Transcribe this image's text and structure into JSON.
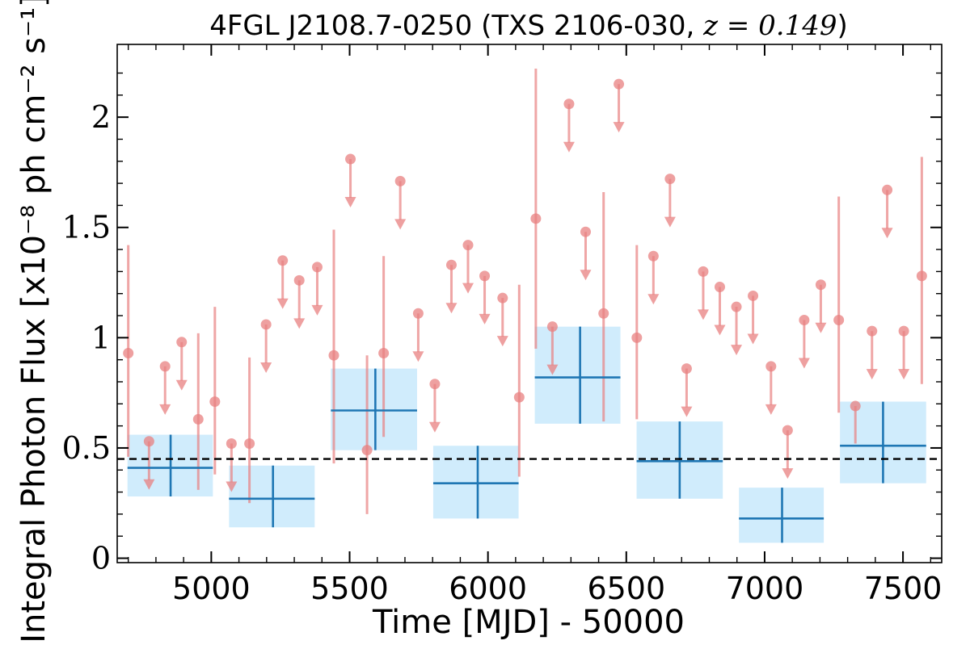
{
  "chart_data": {
    "type": "scatter",
    "title": "4FGL J2108.7-0250 (TXS 2106-030, z = 0.149)",
    "title_parts": {
      "prefix": "4FGL J2108.7-0250 (TXS 2106-030, ",
      "math": "z = 0.149",
      "suffix": ")"
    },
    "xlabel": "Time [MJD] - 50000",
    "ylabel": "Integral Photon Flux [x10⁻⁸ ph cm⁻² s⁻¹]",
    "xlim": [
      4660,
      7640
    ],
    "ylim": [
      -0.02,
      2.33
    ],
    "x_ticks": [
      5000,
      5500,
      6000,
      6500,
      7000,
      7500
    ],
    "x_tick_labels": [
      "5000",
      "5500",
      "6000",
      "6500",
      "7000",
      "7500"
    ],
    "y_ticks": [
      0,
      0.5,
      1,
      1.5,
      2
    ],
    "y_tick_labels": [
      "0",
      "0.5",
      "1",
      "1.5",
      "2"
    ],
    "grid": false,
    "colors": {
      "short_bin": "#e88080",
      "long_bin_line": "#1f77b4",
      "long_bin_box": "#c8e9fb",
      "average_line": "#000000"
    },
    "average_flux": 0.45,
    "short_bin_detections": [
      {
        "x": 4700,
        "y": 0.93,
        "ylo": 0.46,
        "yhi": 1.42
      },
      {
        "x": 4953,
        "y": 0.63,
        "ylo": 0.31,
        "yhi": 1.02
      },
      {
        "x": 5013,
        "y": 0.71,
        "ylo": 0.38,
        "yhi": 1.14
      },
      {
        "x": 5138,
        "y": 0.52,
        "ylo": 0.25,
        "yhi": 0.91
      },
      {
        "x": 5443,
        "y": 0.92,
        "ylo": 0.43,
        "yhi": 1.49
      },
      {
        "x": 5563,
        "y": 0.49,
        "ylo": 0.2,
        "yhi": 0.92
      },
      {
        "x": 5623,
        "y": 0.93,
        "ylo": 0.55,
        "yhi": 1.37
      },
      {
        "x": 6113,
        "y": 0.73,
        "ylo": 0.37,
        "yhi": 1.24
      },
      {
        "x": 6173,
        "y": 1.54,
        "ylo": 0.95,
        "yhi": 2.22
      },
      {
        "x": 6418,
        "y": 1.11,
        "ylo": 0.62,
        "yhi": 1.66
      },
      {
        "x": 6538,
        "y": 1.0,
        "ylo": 0.63,
        "yhi": 1.42
      },
      {
        "x": 7268,
        "y": 1.08,
        "ylo": 0.66,
        "yhi": 1.64
      },
      {
        "x": 7328,
        "y": 0.69,
        "ylo": 0.52,
        "yhi": 0.69
      },
      {
        "x": 7568,
        "y": 1.28,
        "ylo": 0.79,
        "yhi": 1.82
      }
    ],
    "short_bin_upper_limits": [
      {
        "x": 4775,
        "y": 0.53
      },
      {
        "x": 4833,
        "y": 0.87
      },
      {
        "x": 4893,
        "y": 0.98
      },
      {
        "x": 5073,
        "y": 0.52
      },
      {
        "x": 5198,
        "y": 1.06
      },
      {
        "x": 5258,
        "y": 1.35
      },
      {
        "x": 5318,
        "y": 1.26
      },
      {
        "x": 5383,
        "y": 1.32
      },
      {
        "x": 5503,
        "y": 1.81
      },
      {
        "x": 5683,
        "y": 1.71
      },
      {
        "x": 5748,
        "y": 1.11
      },
      {
        "x": 5808,
        "y": 0.79
      },
      {
        "x": 5868,
        "y": 1.33
      },
      {
        "x": 5928,
        "y": 1.42
      },
      {
        "x": 5988,
        "y": 1.28
      },
      {
        "x": 6053,
        "y": 1.18
      },
      {
        "x": 6233,
        "y": 1.05
      },
      {
        "x": 6293,
        "y": 2.06
      },
      {
        "x": 6353,
        "y": 1.48
      },
      {
        "x": 6473,
        "y": 2.15
      },
      {
        "x": 6598,
        "y": 1.37
      },
      {
        "x": 6658,
        "y": 1.72
      },
      {
        "x": 6718,
        "y": 0.86
      },
      {
        "x": 6778,
        "y": 1.3
      },
      {
        "x": 6838,
        "y": 1.23
      },
      {
        "x": 6898,
        "y": 1.14
      },
      {
        "x": 6958,
        "y": 1.19
      },
      {
        "x": 7023,
        "y": 0.87
      },
      {
        "x": 7083,
        "y": 0.58
      },
      {
        "x": 7143,
        "y": 1.08
      },
      {
        "x": 7203,
        "y": 1.24
      },
      {
        "x": 7388,
        "y": 1.03
      },
      {
        "x": 7443,
        "y": 1.67
      },
      {
        "x": 7503,
        "y": 1.03
      }
    ],
    "long_bins": [
      {
        "x0": 4668,
        "x1": 5035,
        "xc": 4853,
        "y": 0.41,
        "ylo": 0.28,
        "yhi": 0.56
      },
      {
        "x0": 5035,
        "x1": 5403,
        "xc": 5223,
        "y": 0.27,
        "ylo": 0.14,
        "yhi": 0.42
      },
      {
        "x0": 5403,
        "x1": 5773,
        "xc": 5593,
        "y": 0.67,
        "ylo": 0.49,
        "yhi": 0.86
      },
      {
        "x0": 5773,
        "x1": 6140,
        "xc": 5963,
        "y": 0.34,
        "ylo": 0.18,
        "yhi": 0.51
      },
      {
        "x0": 6140,
        "x1": 6508,
        "xc": 6333,
        "y": 0.82,
        "ylo": 0.61,
        "yhi": 1.05
      },
      {
        "x0": 6508,
        "x1": 6878,
        "xc": 6693,
        "y": 0.44,
        "ylo": 0.27,
        "yhi": 0.62
      },
      {
        "x0": 6878,
        "x1": 7243,
        "xc": 7063,
        "y": 0.18,
        "ylo": 0.07,
        "yhi": 0.32
      },
      {
        "x0": 7243,
        "x1": 7613,
        "xc": 7428,
        "y": 0.51,
        "ylo": 0.34,
        "yhi": 0.71
      }
    ]
  }
}
